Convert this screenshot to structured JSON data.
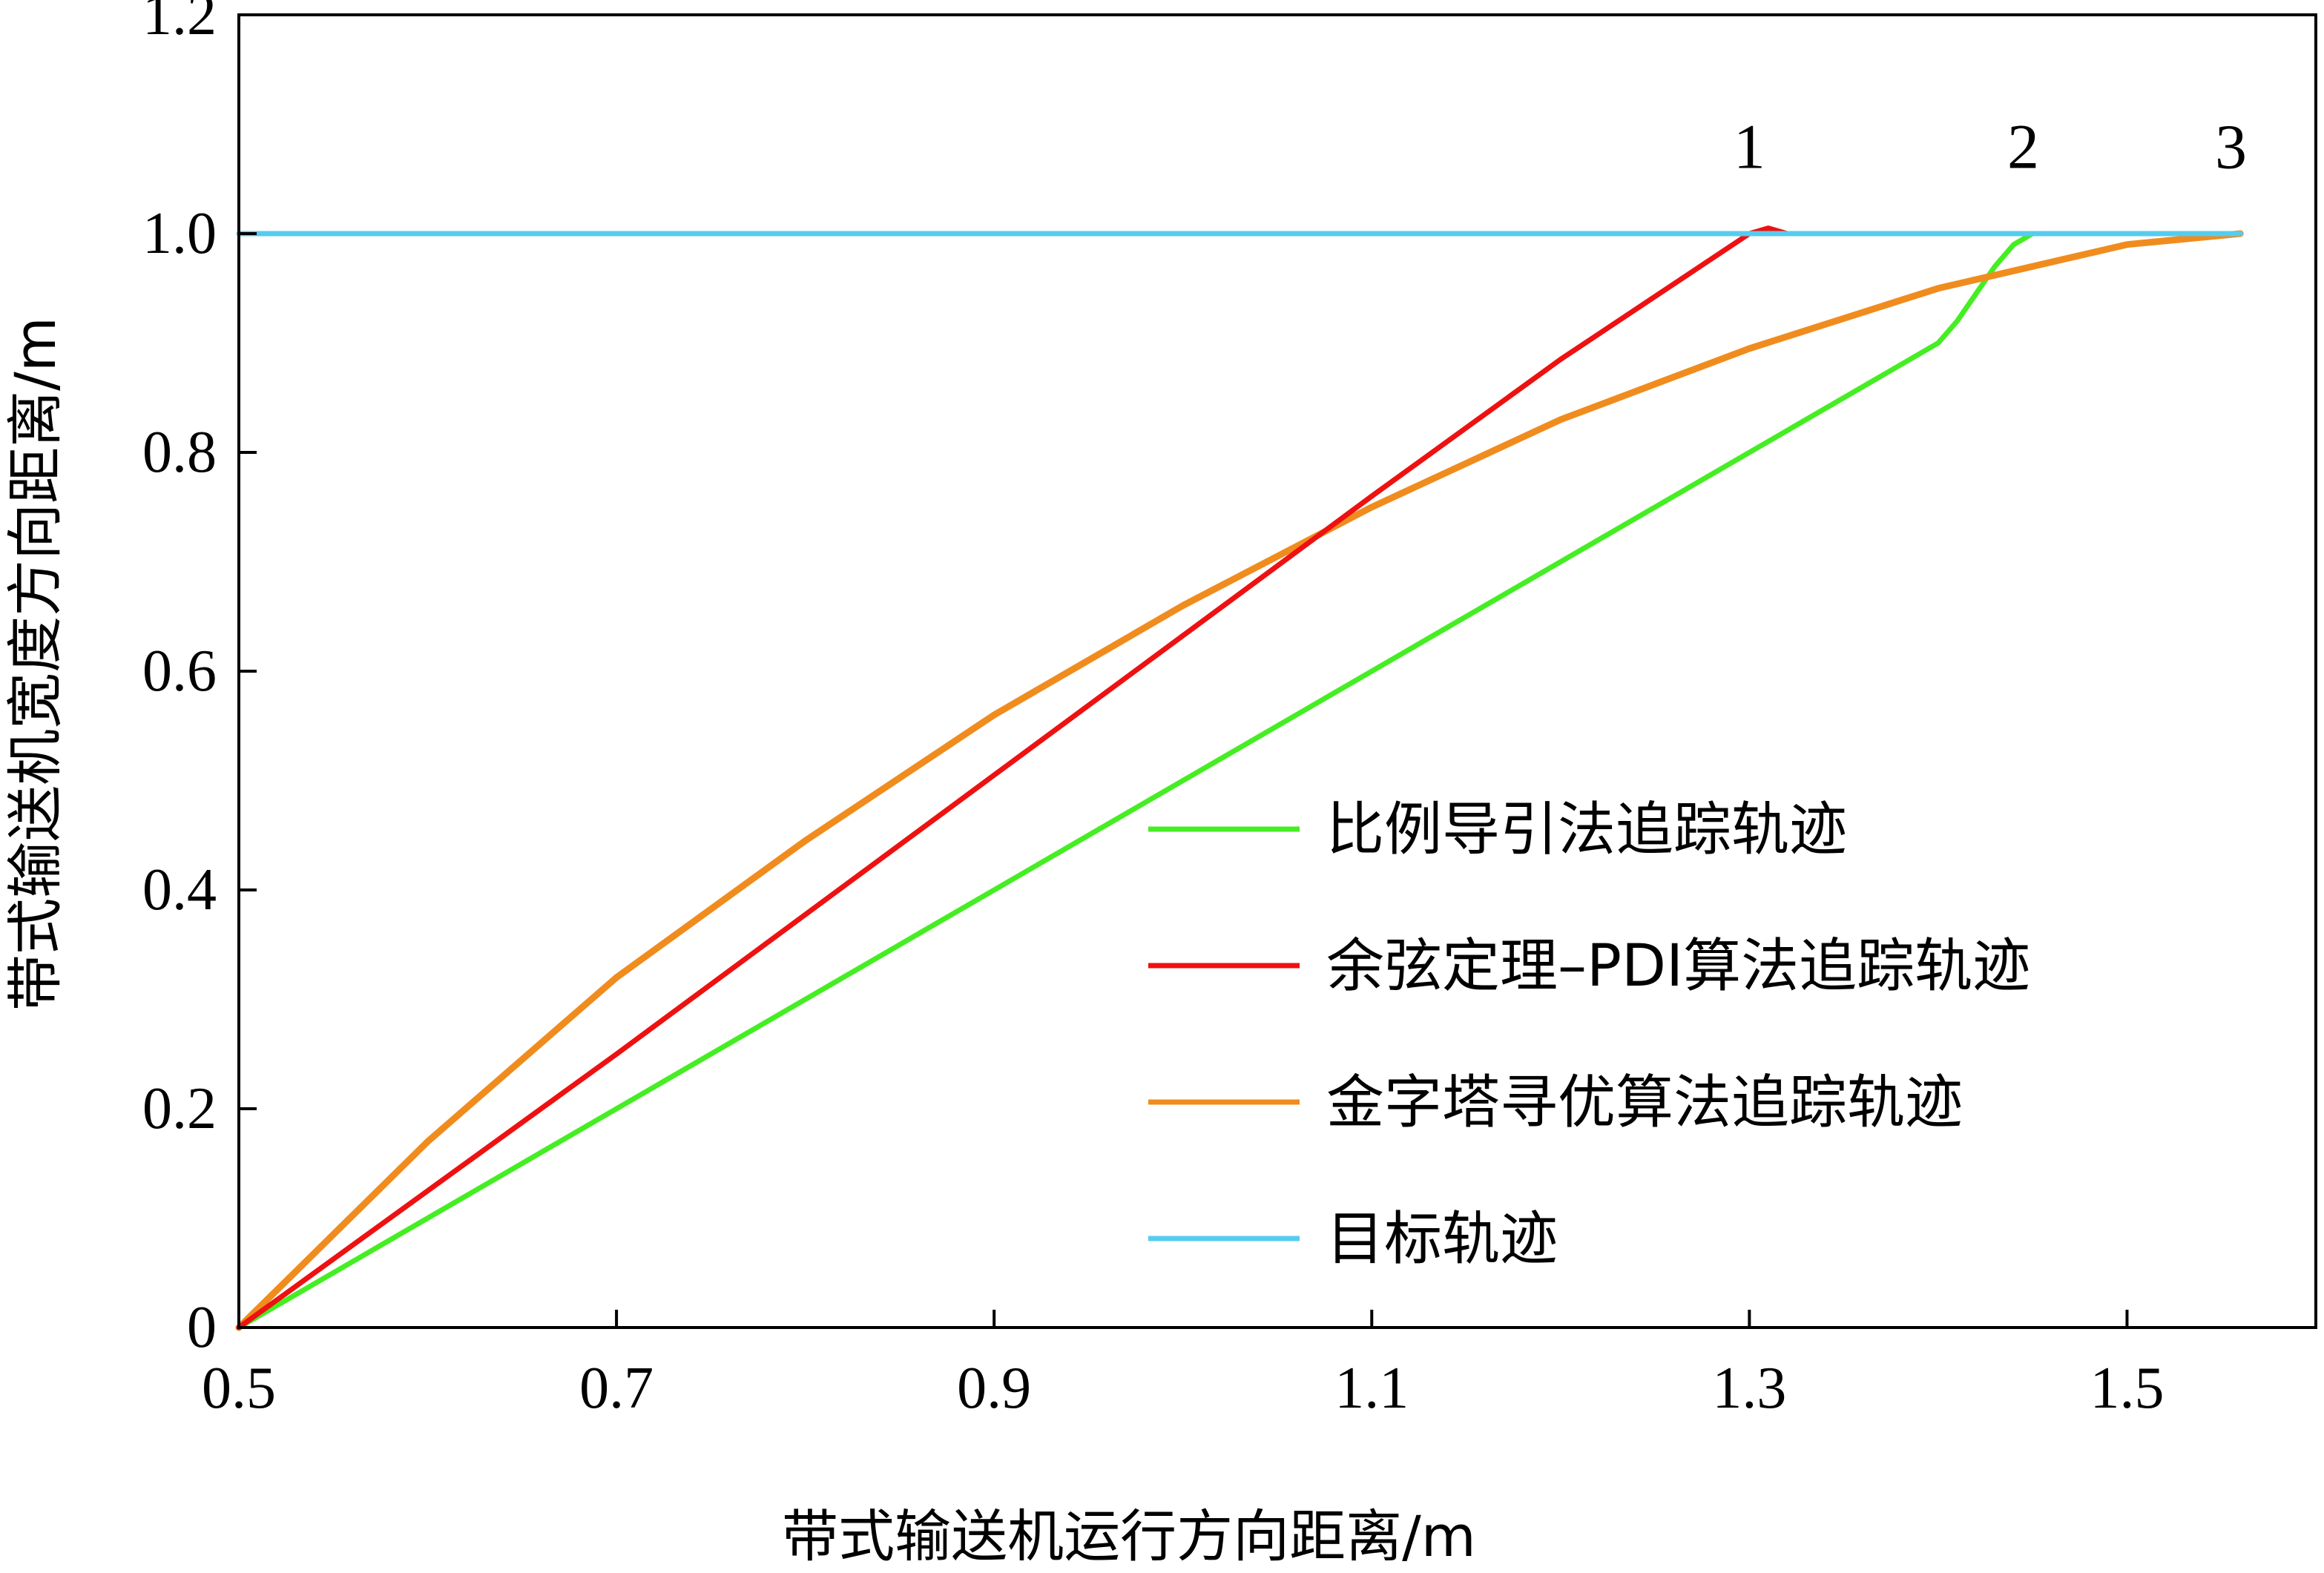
{
  "chart_data": {
    "type": "line",
    "xlabel": "带式输送机运行方向距离/m",
    "ylabel": "带式输送机宽度方向距离/m",
    "xlim": [
      0.5,
      1.6
    ],
    "ylim": [
      0,
      1.2
    ],
    "x_ticks": [
      "0.5",
      "0.7",
      "0.9",
      "1.1",
      "1.3",
      "1.5"
    ],
    "x_tick_values": [
      0.5,
      0.7,
      0.9,
      1.1,
      1.3,
      1.5
    ],
    "y_ticks": [
      "0",
      "0.2",
      "0.4",
      "0.6",
      "0.8",
      "1.0",
      "1.2"
    ],
    "y_tick_values": [
      0,
      0.2,
      0.4,
      0.6,
      0.8,
      1.0,
      1.2
    ],
    "grid": false,
    "legend_position": "center-right",
    "series": [
      {
        "name": "比例导引法追踪轨迹",
        "color": "#44ee22",
        "x": [
          0.5,
          0.7,
          0.9,
          1.1,
          1.3,
          1.4,
          1.41,
          1.42,
          1.43,
          1.44,
          1.45
        ],
        "y": [
          0,
          0.2,
          0.4,
          0.6,
          0.8,
          0.9,
          0.92,
          0.945,
          0.97,
          0.99,
          1.0
        ]
      },
      {
        "name": "余弦定理–PDI算法追踪轨迹",
        "color": "#ee1111",
        "x": [
          0.5,
          0.7,
          0.9,
          1.1,
          1.2,
          1.3,
          1.31,
          1.32
        ],
        "y": [
          0,
          0.25,
          0.505,
          0.76,
          0.885,
          1.0,
          1.005,
          1.0
        ]
      },
      {
        "name": "金字塔寻优算法追踪轨迹",
        "color": "#f08c1e",
        "x": [
          0.5,
          0.6,
          0.7,
          0.8,
          0.9,
          1.0,
          1.1,
          1.2,
          1.3,
          1.4,
          1.5,
          1.56
        ],
        "y": [
          0,
          0.17,
          0.32,
          0.445,
          0.56,
          0.66,
          0.75,
          0.83,
          0.895,
          0.95,
          0.99,
          1.0
        ]
      },
      {
        "name": "目标轨迹",
        "color": "#55ccee",
        "x": [
          0.5,
          1.56
        ],
        "y": [
          1.0,
          1.0
        ]
      }
    ],
    "annotations": [
      {
        "text": "1",
        "x": 1.3,
        "y": 1.06
      },
      {
        "text": "2",
        "x": 1.445,
        "y": 1.06
      },
      {
        "text": "3",
        "x": 1.555,
        "y": 1.06
      }
    ]
  }
}
